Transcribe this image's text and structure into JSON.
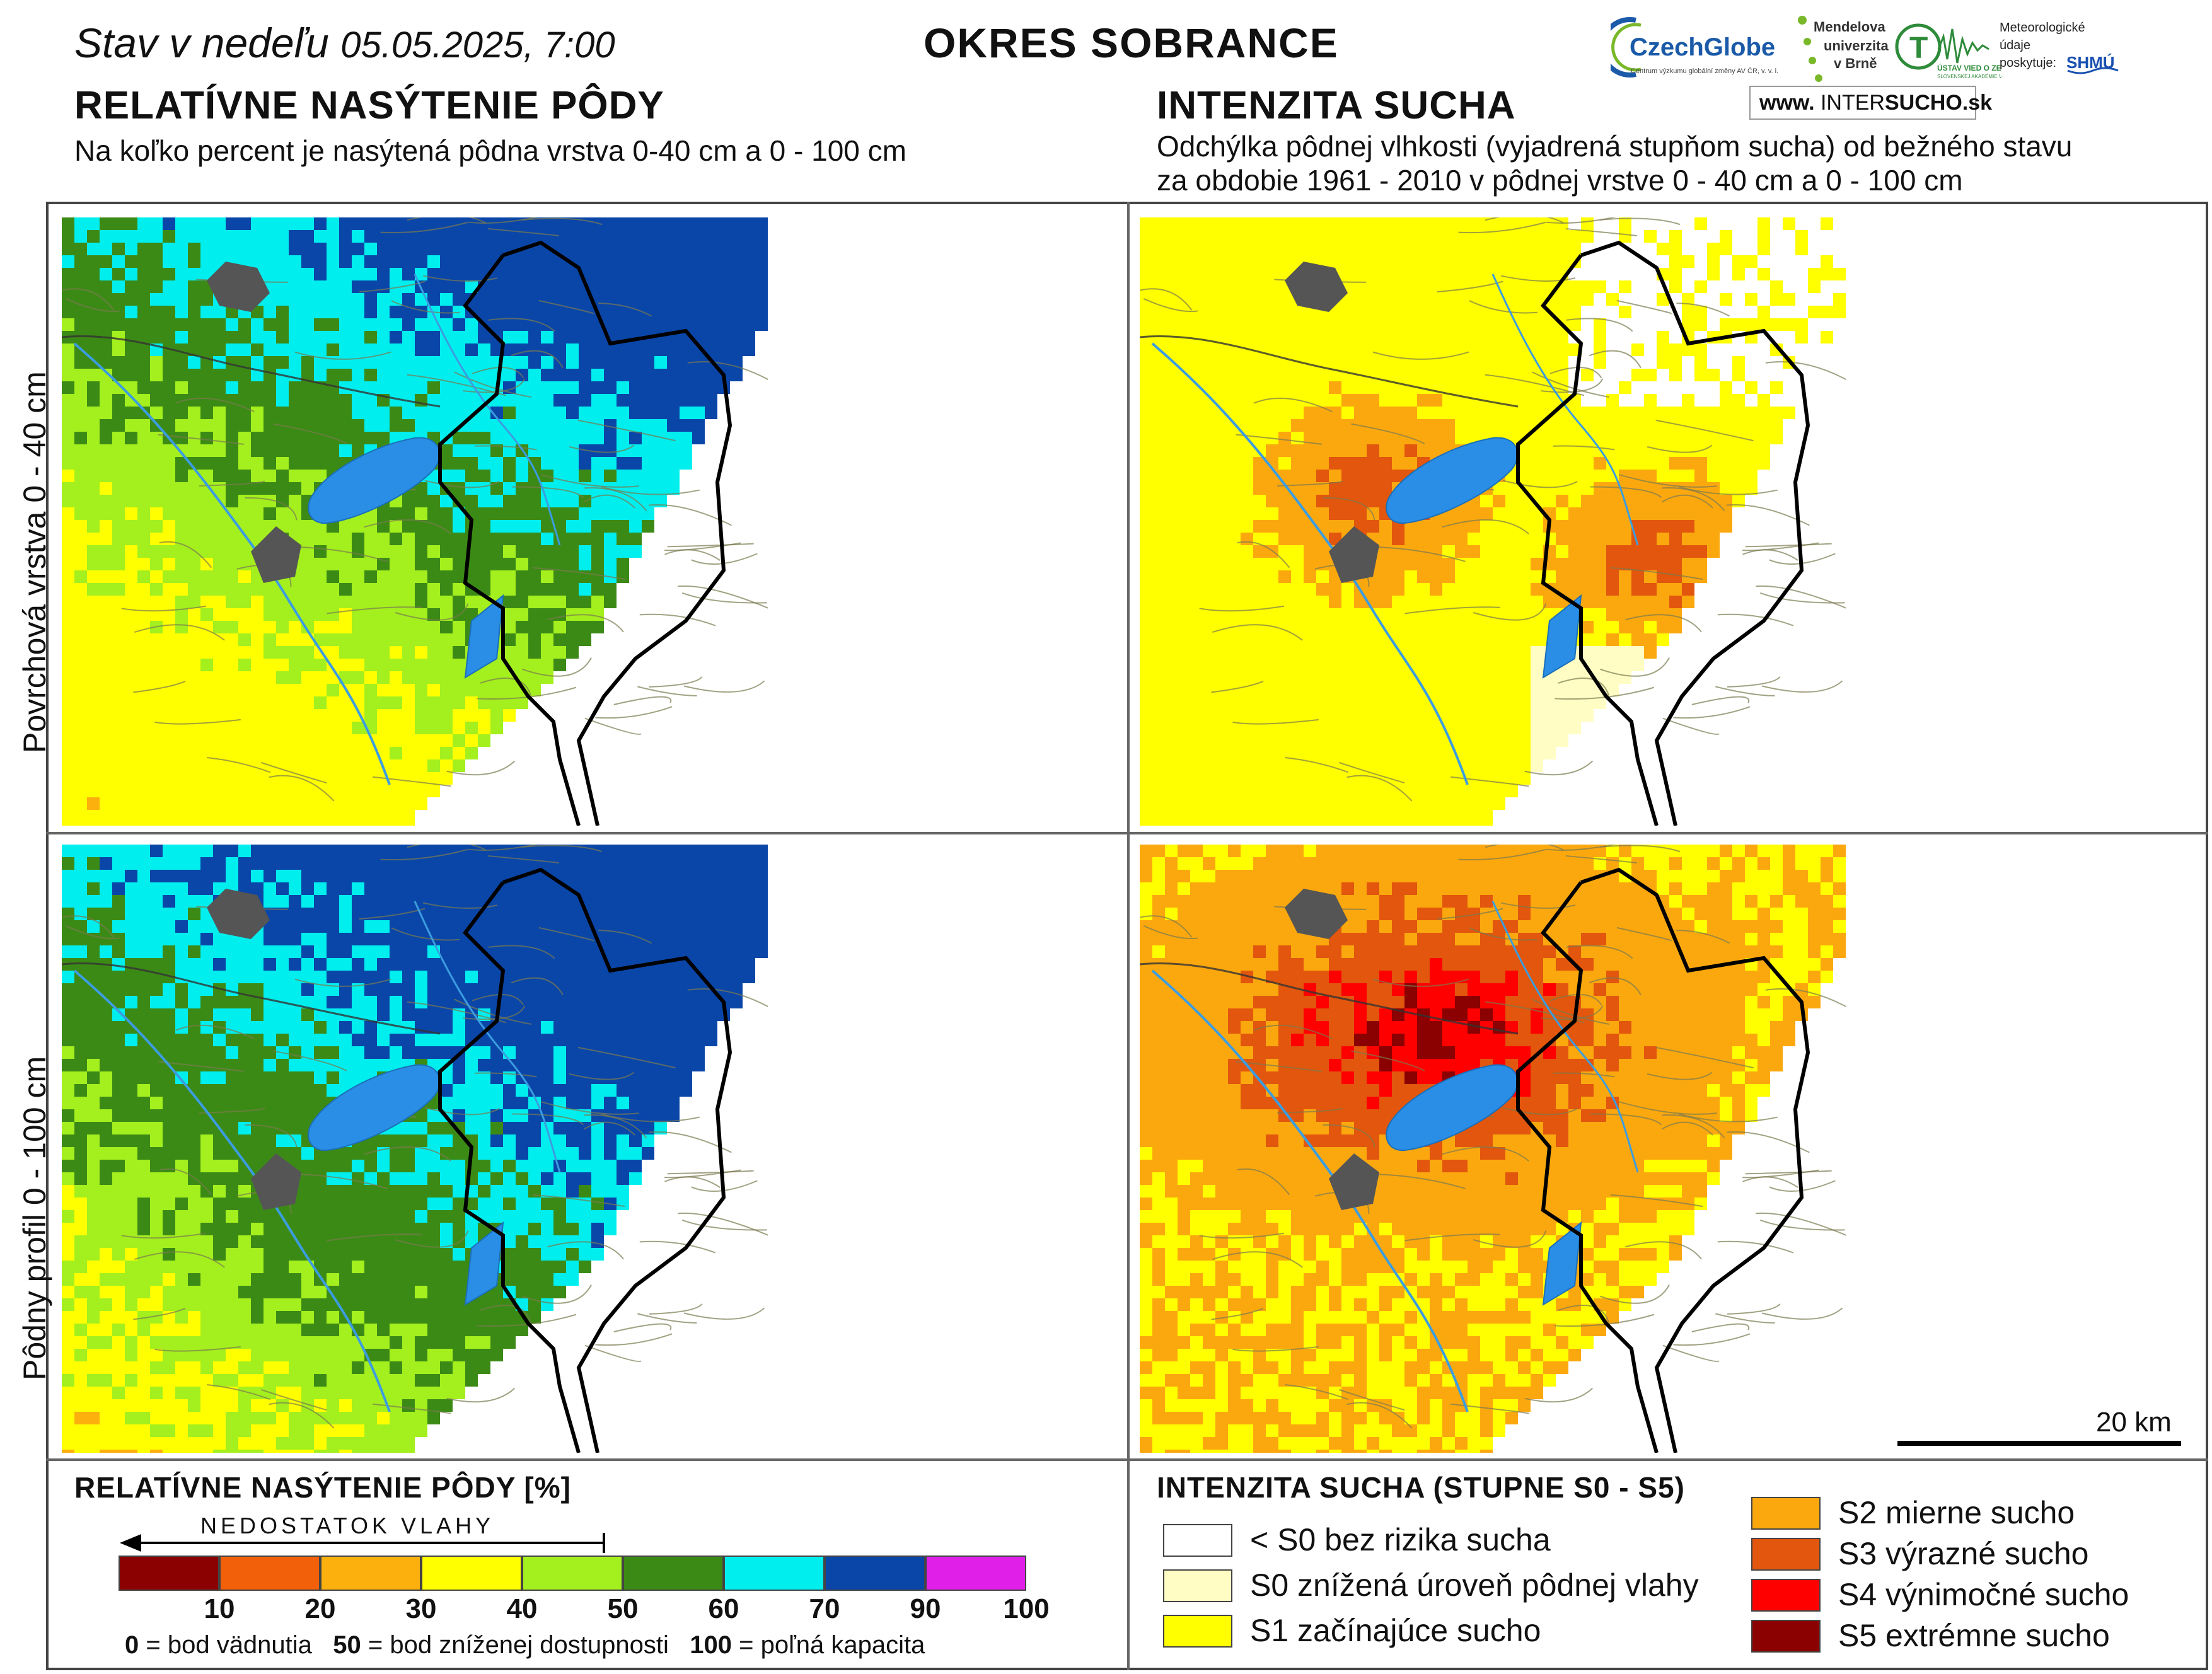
{
  "header": {
    "date_prefix": "Stav v nedeľu",
    "date_value": "05.05.2025, 7:00",
    "district": "OKRES  SOBRANCE"
  },
  "left_section": {
    "title": "RELATÍVNE NASÝTENIE PÔDY",
    "subtitle": "Na koľko percent je nasýtená pôdna vrstva 0-40 cm a 0 - 100 cm"
  },
  "right_section": {
    "title": "INTENZITA SUCHA",
    "subtitle_line1": "Odchýlka pôdnej vlhkosti (vyjadrená stupňom sucha) od bežného stavu",
    "subtitle_line2": "za obdobie 1961 - 2010 v pôdnej vrstve 0 - 40 cm a 0 - 100 cm"
  },
  "rows": {
    "top_label": "Povrchová vrstva 0 - 40 cm",
    "bottom_label": "Pôdny profil 0 - 100 cm"
  },
  "logos": {
    "czechglobe": "CzechGlobe",
    "czechglobe_sub": "Centrum výzkumu globální změny AV ČR, v. v. i.",
    "mendel_line1": "Mendelova",
    "mendel_line2": "univerzita",
    "mendel_line3": "v Brně",
    "ustav": "ÚSTAV VIED O ZEMI",
    "ustav_sub": "SLOVENSKEJ AKADÉMIE VIED",
    "meteo_line1": "Meteorologické",
    "meteo_line2": "údaje",
    "meteo_line3": "poskytuje:",
    "shmu": "SHMÚ",
    "intersucho_prefix": "www.",
    "intersucho_a": "INTER",
    "intersucho_b": "SUCHO",
    "intersucho_c": ".sk"
  },
  "scale_bar": {
    "label": "20 km"
  },
  "saturation_legend": {
    "title": "RELATÍVNE NASÝTENIE PÔDY [%]",
    "arrow_label": "NEDOSTATOK VLAHY",
    "classes": [
      {
        "from": 0,
        "to": 10,
        "color": "#8b0000"
      },
      {
        "from": 10,
        "to": 20,
        "color": "#f2600a"
      },
      {
        "from": 20,
        "to": 30,
        "color": "#fbb00e"
      },
      {
        "from": 30,
        "to": 40,
        "color": "#ffff00"
      },
      {
        "from": 40,
        "to": 50,
        "color": "#a4ef1e"
      },
      {
        "from": 50,
        "to": 60,
        "color": "#3c8a16"
      },
      {
        "from": 60,
        "to": 70,
        "color": "#00eeee"
      },
      {
        "from": 70,
        "to": 90,
        "color": "#0a46a8"
      },
      {
        "from": 90,
        "to": 100,
        "color": "#e020e8"
      }
    ],
    "tick_labels": [
      "10",
      "20",
      "30",
      "40",
      "50",
      "60",
      "70",
      "90",
      "100"
    ],
    "note_a_value": "0",
    "note_a_text": " = bod vädnutia",
    "note_b_value": "50",
    "note_b_text": " = bod zníženej dostupnosti",
    "note_c_value": "100",
    "note_c_text": " = poľná kapacita"
  },
  "drought_legend": {
    "title": "INTENZITA SUCHA (STUPNE S0 - S5)",
    "items": [
      {
        "label": "< S0 bez rizika sucha",
        "color": "#ffffff"
      },
      {
        "label": "S0 znížená úroveň pôdnej vlahy",
        "color": "#fffdc4"
      },
      {
        "label": "S1 začínajúce sucho",
        "color": "#ffff00"
      },
      {
        "label": "S2 mierne sucho",
        "color": "#fba80f"
      },
      {
        "label": "S3 výrazné sucho",
        "color": "#e2560d"
      },
      {
        "label": "S4 výnimočné sucho",
        "color": "#ff0000"
      },
      {
        "label": "S5 extrémne sucho",
        "color": "#8b0000"
      }
    ]
  },
  "map_colors": {
    "lake": "#2a8ee6",
    "river": "#3b9de0",
    "town": "#555555",
    "district_border": "#000000",
    "commune_border": "#7a7a50"
  }
}
